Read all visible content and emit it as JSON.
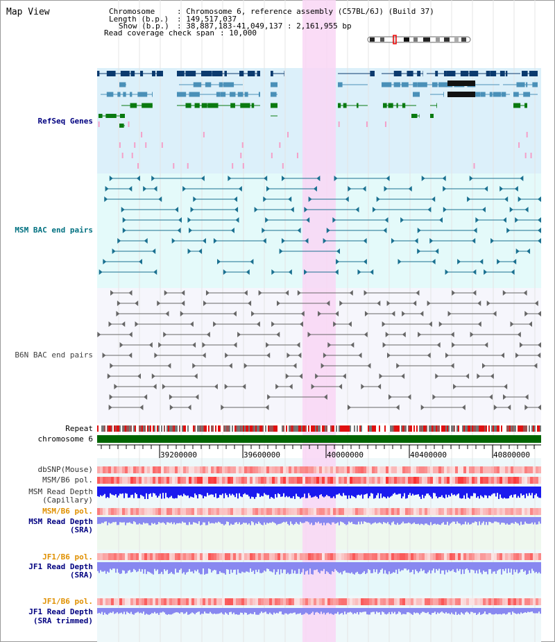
{
  "header": {
    "view_title": "Map View",
    "chromosome_key": "Chromosome",
    "chromosome_value": ": Chromosome 6, reference assembly (C57BL/6J) (Build 37)",
    "length_key": "Length (b.p.)",
    "length_value": ": 149,517,037",
    "show_key": "Show (b.p.)",
    "show_value": ": 38,887,183-41,049,137 : 2,161,955 bp",
    "coverage_key": "Read coverage check span",
    "coverage_value": ": 10,000"
  },
  "tracks": {
    "refseq": {
      "label": "RefSeq Genes",
      "color": "#000080"
    },
    "msm_bac": {
      "label": "MSM BAC end pairs",
      "color": "#007080"
    },
    "b6n_bac": {
      "label": "B6N BAC end pairs",
      "color": "#404040"
    },
    "repeat": {
      "label": "Repeat"
    },
    "chromosome": {
      "label": "chromosome 6"
    },
    "dbsnp": {
      "label": "dbSNP(Mouse)"
    },
    "msm_b6_pol_1": {
      "label": "MSM/B6 pol."
    },
    "msm_depth_cap": {
      "label1": "MSM Read Depth",
      "label2": "(Capillary)"
    },
    "msm_b6_pol_2": {
      "label": "MSM/B6 pol."
    },
    "msm_depth_sra": {
      "label1": "MSM Read Depth",
      "label2": "(SRA)"
    },
    "jf1_b6_pol_1": {
      "label": "JF1/B6 pol."
    },
    "jf1_depth_sra": {
      "label1": "JF1 Read Depth",
      "label2": "(SRA)"
    },
    "jf1_b6_pol_2": {
      "label": "JF1/B6 pol."
    },
    "jf1_depth_trim": {
      "label1": "JF1 Read Depth",
      "label2": "(SRA trimmed)"
    }
  },
  "scale": {
    "ticks": [
      "39200000",
      "39600000",
      "40000000",
      "40400000",
      "40800000"
    ]
  },
  "colors": {
    "highlight": "#f9d6f5",
    "refseq_bg": "#dcf0fa",
    "msm_bg": "#e4fafa",
    "b6n_bg": "#f6f6fc",
    "chromosome_bar": "#006400",
    "msm_depth_cap": "#1a1aee",
    "sra_depth": "#8888f0",
    "pol_red": "#ee2222"
  }
}
